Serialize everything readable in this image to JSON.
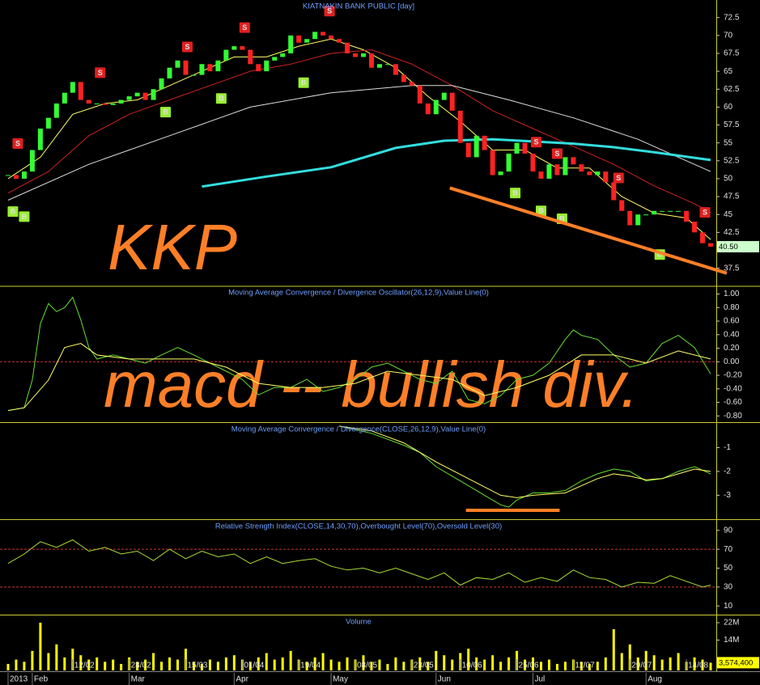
{
  "chart_data": [
    {
      "type": "candlestick",
      "title": "KIATNAKIN BANK PUBLIC [day]",
      "annotation": "KKP",
      "xlim": [
        -1,
        87.7
      ],
      "ylim": [
        35.2,
        74.5
      ],
      "yticks": [
        72.5,
        70,
        67.5,
        65,
        62.5,
        60,
        57.5,
        55,
        52.5,
        50,
        47.5,
        45,
        42.5,
        37.5
      ],
      "up_color": "#33ff33",
      "down_color": "#ff2222",
      "close": [
        50.5,
        50,
        51,
        54,
        57,
        58.5,
        60.5,
        62,
        63.5,
        61,
        60.5,
        60.5,
        60.3,
        60.5,
        61,
        61.5,
        62,
        61,
        62.5,
        64,
        65.5,
        66.5,
        64.5,
        64.5,
        66,
        65,
        66.5,
        68,
        68.5,
        68,
        66,
        65,
        66.5,
        67,
        67.5,
        70,
        69,
        69.5,
        70.5,
        70,
        69.5,
        69,
        67.5,
        67,
        67.5,
        65.5,
        66,
        66,
        64.5,
        63.5,
        63,
        60.5,
        59,
        61,
        62,
        59.5,
        55,
        53,
        56,
        54,
        50.5,
        51,
        53.5,
        55,
        53.5,
        51,
        50,
        52,
        50.5,
        53,
        52,
        51,
        50.5,
        51,
        49.5,
        47,
        45.5,
        43.5,
        45,
        45,
        45.5,
        45.5,
        45.5,
        45.5,
        44,
        42.5,
        41,
        40.5
      ],
      "series": [
        {
          "color": "#ffff66",
          "width": 1,
          "x": [
            0,
            4,
            8,
            12,
            16,
            20,
            24,
            28,
            32,
            36,
            40,
            44,
            48,
            52,
            56,
            60,
            64,
            68,
            72,
            76,
            80,
            84,
            87
          ],
          "values": [
            50,
            53,
            59,
            60.5,
            61,
            63,
            65,
            67,
            67,
            68.5,
            69.5,
            68,
            65.5,
            61.5,
            58,
            54,
            54,
            51.5,
            51.5,
            47.5,
            45.2,
            44.5,
            41.5
          ]
        },
        {
          "color": "#cc2222",
          "width": 1,
          "x": [
            0,
            5,
            10,
            15,
            20,
            25,
            30,
            35,
            40,
            45,
            50,
            55,
            60,
            65,
            70,
            75,
            80,
            85,
            87
          ],
          "values": [
            48,
            51,
            56,
            59,
            61,
            63,
            65,
            66,
            67.5,
            68,
            66,
            63,
            59.5,
            57,
            54.5,
            52,
            49,
            46.5,
            45.3
          ]
        },
        {
          "color": "#dddddd",
          "width": 1,
          "x": [
            0,
            10,
            20,
            30,
            40,
            50,
            55,
            62,
            70,
            78,
            83,
            87
          ],
          "values": [
            47,
            52,
            56,
            60,
            62,
            63,
            63,
            61,
            58.5,
            55.5,
            53,
            51
          ]
        },
        {
          "color": "#33dddd",
          "width": 3,
          "x": [
            24,
            32,
            40,
            48,
            54,
            60,
            65,
            70,
            75,
            80,
            87
          ],
          "values": [
            48.9,
            50.3,
            51.6,
            54.3,
            55.3,
            55.5,
            55.2,
            54.9,
            54.4,
            53.7,
            52.6
          ]
        }
      ],
      "signals": [
        {
          "label": "S",
          "x": 1.2,
          "y": 54.9
        },
        {
          "label": "B",
          "x": 0.6,
          "y": 45.4
        },
        {
          "label": "B",
          "x": 2,
          "y": 44.7
        },
        {
          "label": "S",
          "x": 11.4,
          "y": 64.8
        },
        {
          "label": "B",
          "x": 19.5,
          "y": 59.3
        },
        {
          "label": "S",
          "x": 22.2,
          "y": 68.4
        },
        {
          "label": "B",
          "x": 26.4,
          "y": 61.2
        },
        {
          "label": "S",
          "x": 29.3,
          "y": 71.1
        },
        {
          "label": "B",
          "x": 36.6,
          "y": 63.4
        },
        {
          "label": "S",
          "x": 39.8,
          "y": 73.4
        },
        {
          "label": "S",
          "x": 65.4,
          "y": 55.1
        },
        {
          "label": "B",
          "x": 62.8,
          "y": 48
        },
        {
          "label": "S",
          "x": 68,
          "y": 53.5
        },
        {
          "label": "B",
          "x": 66,
          "y": 45.5
        },
        {
          "label": "B",
          "x": 68.6,
          "y": 44.4
        },
        {
          "label": "S",
          "x": 75.6,
          "y": 50.1
        },
        {
          "label": "S",
          "x": 86.3,
          "y": 45.3
        },
        {
          "label": "B",
          "x": 80.7,
          "y": 39.4
        }
      ],
      "signal_colors": {
        "S": "#e02020",
        "B": "#99ee33"
      },
      "trendline": {
        "color": "#ff7f27",
        "x": [
          54.7,
          89
        ],
        "y": [
          48.7,
          36.8
        ]
      },
      "last_label": {
        "value": 40.5,
        "label": "40.50"
      },
      "last_color": "#ccffcc"
    },
    {
      "type": "line",
      "title": "Moving Average Convergence / Divergence Oscillator(26,12,9),Value Line(0)",
      "annotation": "macd -- bullish div.",
      "xlim": [
        -1,
        87.7
      ],
      "ylim": [
        -0.88,
        1.09
      ],
      "yticks": [
        {
          "value": 1,
          "label": "1.00"
        },
        {
          "value": 0.8,
          "label": "0.80"
        },
        {
          "value": 0.6,
          "label": "0.60"
        },
        {
          "value": 0.4,
          "label": "0.40"
        },
        {
          "value": 0.2,
          "label": "0.20"
        },
        {
          "value": 0,
          "label": "0.00"
        },
        {
          "value": -0.2,
          "label": "-0.20"
        },
        {
          "value": -0.4,
          "label": "-0.40"
        },
        {
          "value": -0.6,
          "label": "-0.60"
        },
        {
          "value": -0.8,
          "label": "-0.80"
        }
      ],
      "ref_lines": [
        0
      ],
      "series": [
        {
          "color": "#66dd33",
          "width": 1,
          "x": [
            0,
            2,
            3,
            4,
            5,
            6,
            7,
            8,
            9,
            10,
            11,
            13,
            15,
            17,
            19,
            21,
            23,
            25,
            27,
            29,
            31,
            33,
            35,
            37,
            39,
            41,
            43,
            45,
            47,
            49,
            51,
            53,
            55,
            57,
            59,
            61,
            63,
            65,
            67,
            69,
            70,
            71,
            73,
            75,
            77,
            79,
            81,
            83,
            85,
            87
          ],
          "values": [
            -0.72,
            -0.68,
            -0.27,
            0.56,
            0.86,
            0.74,
            0.8,
            0.95,
            0.62,
            0.21,
            0.04,
            0.1,
            0.04,
            -0.02,
            0.1,
            0.21,
            0.1,
            -0.02,
            -0.14,
            -0.26,
            -0.49,
            -0.38,
            -0.38,
            -0.26,
            -0.44,
            -0.38,
            -0.26,
            -0.08,
            -0.02,
            -0.14,
            -0.26,
            -0.32,
            -0.14,
            -0.56,
            -0.62,
            -0.5,
            -0.26,
            -0.2,
            -0.02,
            0.33,
            0.47,
            0.39,
            0.33,
            0.1,
            -0.08,
            -0.02,
            0.27,
            0.39,
            0.21,
            -0.18
          ]
        },
        {
          "color": "#ffff66",
          "width": 1,
          "x": [
            0,
            2,
            5,
            7,
            9,
            11,
            15,
            19,
            23,
            27,
            31,
            35,
            39,
            43,
            47,
            51,
            55,
            59,
            63,
            67,
            71,
            75,
            79,
            83,
            87
          ],
          "values": [
            -0.72,
            -0.68,
            -0.27,
            0.21,
            0.27,
            0.1,
            0.04,
            0.04,
            0.04,
            -0.08,
            -0.32,
            -0.38,
            -0.38,
            -0.32,
            -0.14,
            -0.2,
            -0.26,
            -0.5,
            -0.38,
            -0.2,
            0.1,
            0.1,
            -0.02,
            0.16,
            0.04
          ]
        }
      ]
    },
    {
      "type": "line",
      "title": "Moving Average Convergence / Divergence(CLOSE,26,12,9),Value Line(0)",
      "xlim": [
        -1,
        87.7
      ],
      "ylim": [
        -3.97,
        0
      ],
      "yticks": [
        -1,
        -2,
        -3
      ],
      "series": [
        {
          "color": "#66dd33",
          "width": 1,
          "x": [
            41,
            45,
            49,
            51,
            53,
            55,
            57,
            59,
            61,
            62,
            63,
            65,
            67,
            69,
            71,
            73,
            75,
            77,
            79,
            81,
            83,
            85,
            87
          ],
          "values": [
            -0.1,
            -0.4,
            -0.9,
            -1.2,
            -1.8,
            -2.2,
            -2.6,
            -3,
            -3.4,
            -3.5,
            -3.2,
            -2.9,
            -2.9,
            -2.8,
            -2.4,
            -2.1,
            -1.9,
            -2,
            -2.4,
            -2.3,
            -2,
            -1.8,
            -2.1
          ]
        },
        {
          "color": "#ffff66",
          "width": 1,
          "x": [
            41,
            45,
            49,
            53,
            57,
            61,
            63,
            65,
            67,
            69,
            71,
            73,
            75,
            77,
            79,
            81,
            83,
            85,
            87
          ],
          "values": [
            -0.1,
            -0.3,
            -0.8,
            -1.6,
            -2.3,
            -3,
            -3.1,
            -3,
            -2.95,
            -2.9,
            -2.6,
            -2.3,
            -2.1,
            -2.2,
            -2.35,
            -2.3,
            -2.1,
            -1.9,
            -2
          ]
        }
      ],
      "trendline": {
        "color": "#ff7f27",
        "x": [
          56.7,
          68.3
        ],
        "y": [
          -3.63,
          -3.63
        ]
      }
    },
    {
      "type": "line",
      "title": "Relative Strength Index(CLOSE,14,30,70),Overbought Level(70),Oversold Level(30)",
      "xlim": [
        -1,
        87.7
      ],
      "ylim": [
        1.6,
        100.1
      ],
      "yticks": [
        90,
        70,
        50,
        30,
        10
      ],
      "ref_lines": [
        70,
        30
      ],
      "series": [
        {
          "color": "#aadd33",
          "width": 1,
          "x": [
            0,
            2,
            4,
            6,
            8,
            10,
            12,
            14,
            16,
            18,
            20,
            22,
            24,
            26,
            28,
            30,
            32,
            34,
            36,
            38,
            40,
            42,
            44,
            46,
            48,
            50,
            52,
            54,
            56,
            58,
            60,
            62,
            64,
            66,
            68,
            70,
            72,
            74,
            76,
            78,
            80,
            82,
            84,
            86,
            87
          ],
          "values": [
            55,
            65,
            78,
            72,
            80,
            68,
            72,
            65,
            68,
            58,
            70,
            60,
            68,
            62,
            65,
            55,
            62,
            55,
            58,
            60,
            52,
            48,
            50,
            45,
            50,
            44,
            38,
            45,
            32,
            40,
            38,
            45,
            35,
            40,
            36,
            48,
            40,
            38,
            30,
            35,
            34,
            42,
            36,
            30,
            32
          ]
        }
      ]
    },
    {
      "type": "bar",
      "title": "Volume",
      "xlim": [
        -1,
        87.7
      ],
      "ylim": [
        0,
        24600000
      ],
      "color": "#ffff00",
      "yticks": [
        {
          "value": 22000000,
          "label": "22M"
        },
        {
          "value": 14000000,
          "label": "14M"
        }
      ],
      "values": [
        3000000,
        5000000,
        4000000,
        9000000,
        22000000,
        8000000,
        12000000,
        6000000,
        10000000,
        7000000,
        5000000,
        6000000,
        4000000,
        5000000,
        3000000,
        6000000,
        4000000,
        5000000,
        8000000,
        4000000,
        6000000,
        5000000,
        10000000,
        4000000,
        3000000,
        5000000,
        4000000,
        6000000,
        7000000,
        5000000,
        4000000,
        6000000,
        8000000,
        5000000,
        6000000,
        9000000,
        5000000,
        4000000,
        6000000,
        8000000,
        5000000,
        4000000,
        6000000,
        5000000,
        7000000,
        4000000,
        5000000,
        3000000,
        6000000,
        4000000,
        5000000,
        6000000,
        4000000,
        9000000,
        7000000,
        5000000,
        8000000,
        10000000,
        6000000,
        5000000,
        7000000,
        4000000,
        6000000,
        9000000,
        5000000,
        6000000,
        4000000,
        5000000,
        3000000,
        4000000,
        5000000,
        4000000,
        3000000,
        4000000,
        6000000,
        19000000,
        8000000,
        12000000,
        6000000,
        9000000,
        7000000,
        5000000,
        6000000,
        8000000,
        4000000,
        6000000,
        5000000,
        3574400
      ],
      "last_label": {
        "value": 3574400,
        "label": "3,574,400"
      },
      "last_color": "#ffff00",
      "xticks": [
        {
          "value": 8,
          "label": "12/02"
        },
        {
          "value": 15,
          "label": "28/02"
        },
        {
          "value": 22,
          "label": "15/03"
        },
        {
          "value": 29,
          "label": "01/04"
        },
        {
          "value": 36,
          "label": "19/04"
        },
        {
          "value": 43,
          "label": "08/05"
        },
        {
          "value": 50,
          "label": "23/05"
        },
        {
          "value": 56,
          "label": "10/06"
        },
        {
          "value": 63,
          "label": "25/06"
        },
        {
          "value": 70,
          "label": "11/07"
        },
        {
          "value": 77,
          "label": "29/07"
        },
        {
          "value": 84,
          "label": "14/08"
        }
      ],
      "xticks2": [
        {
          "value": 0,
          "label": "2013"
        },
        {
          "value": 3,
          "label": "Feb"
        },
        {
          "value": 15,
          "label": "Mar"
        },
        {
          "value": 28,
          "label": "Apr"
        },
        {
          "value": 40,
          "label": "May"
        },
        {
          "value": 53,
          "label": "Jun"
        },
        {
          "value": 65,
          "label": "Jul"
        },
        {
          "value": 79,
          "label": "Aug"
        }
      ]
    }
  ]
}
